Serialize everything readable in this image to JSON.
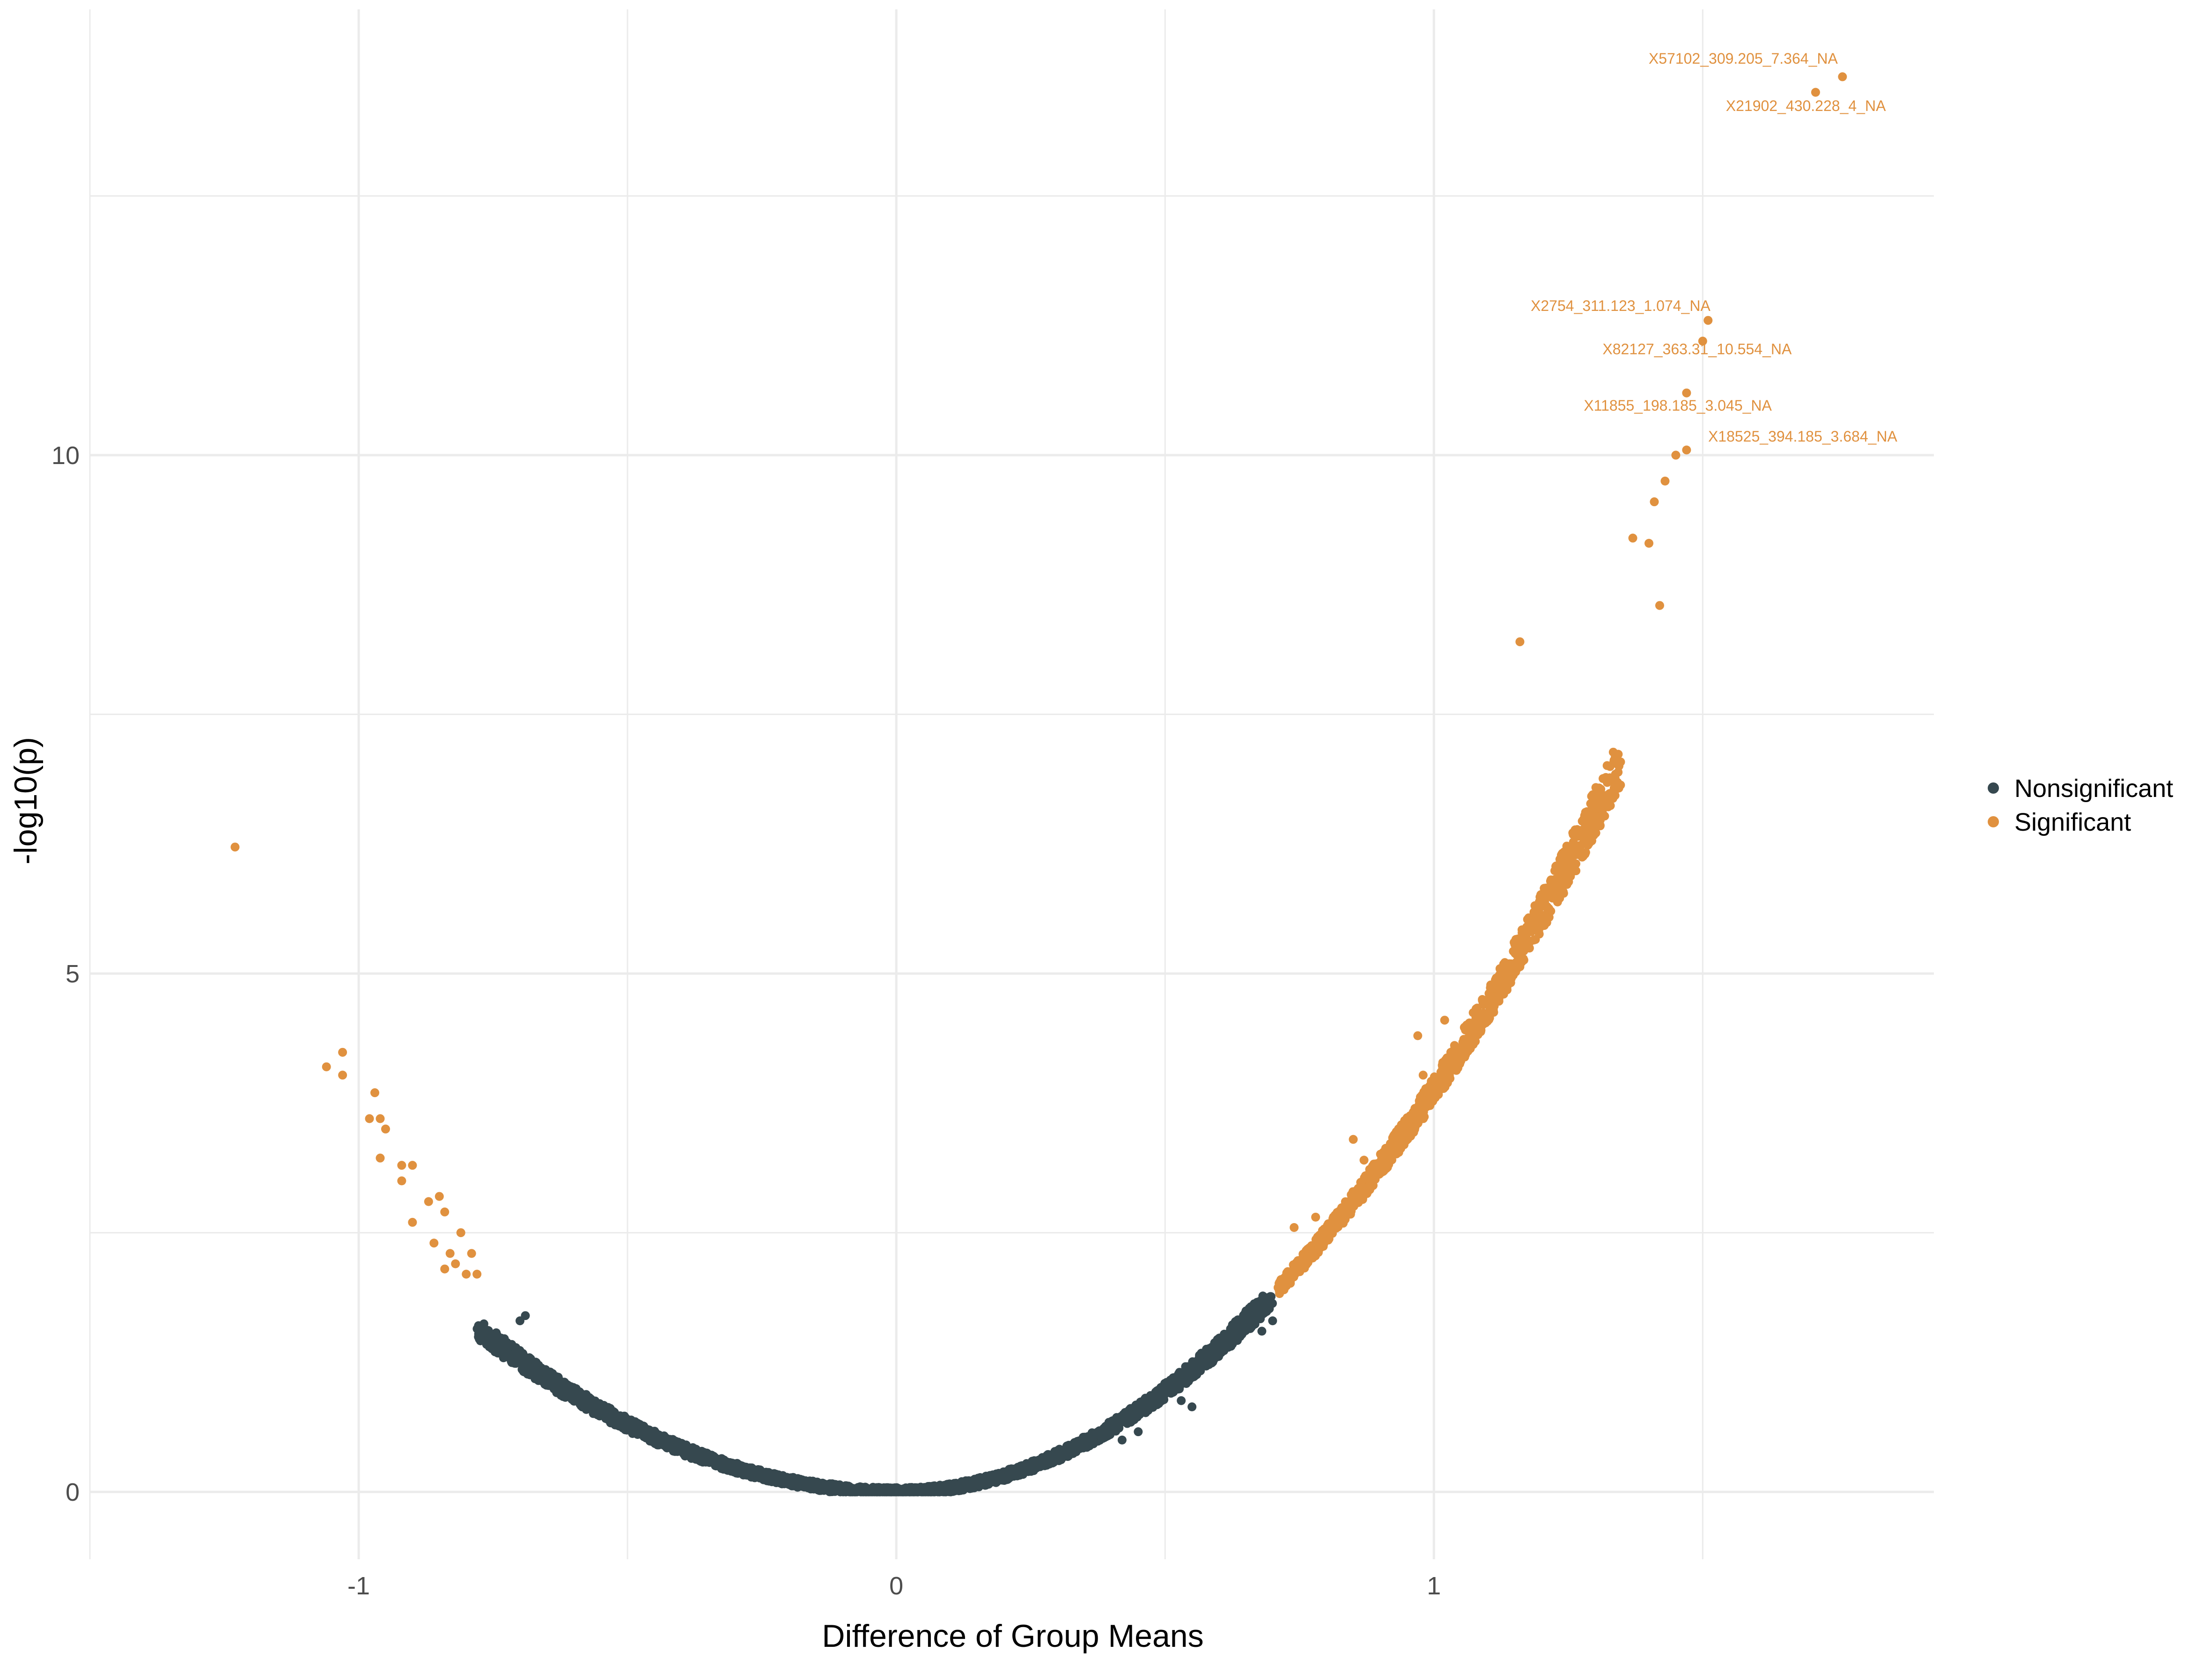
{
  "chart_data": {
    "type": "scatter",
    "title": "",
    "xlabel": "Difference of Group Means",
    "ylabel": "-log10(p)",
    "xlim": [
      -1.5,
      1.93
    ],
    "ylim": [
      -0.65,
      14.3
    ],
    "x_ticks": [
      -1,
      0,
      1
    ],
    "x_tick_labels": [
      "-1",
      "0",
      "1"
    ],
    "y_ticks": [
      0,
      5,
      10
    ],
    "y_tick_labels": [
      "0",
      "5",
      "10"
    ],
    "grid": true,
    "legend_position": "right",
    "colors": {
      "Nonsignificant": "#36484f",
      "Significant": "#e0913f",
      "grid": "#ebebeb"
    },
    "curve_model": {
      "note_shape": "points follow -log10(p) ≈ k·x² with scatter; exact values approximated",
      "k_positive": 3.88,
      "k_negative": 2.6,
      "significance_threshold": 1.9
    },
    "series": [
      {
        "name": "Nonsignificant",
        "color": "#36484f",
        "points_extra": [
          [
            0.42,
            0.5
          ],
          [
            0.45,
            0.58
          ],
          [
            0.53,
            0.88
          ],
          [
            0.55,
            0.82
          ],
          [
            -0.52,
            0.73
          ],
          [
            0.7,
            1.65
          ],
          [
            0.68,
            1.55
          ],
          [
            -0.69,
            1.7
          ],
          [
            -0.7,
            1.65
          ]
        ]
      },
      {
        "name": "Significant",
        "color": "#e0913f",
        "points": [
          [
            -1.23,
            6.22
          ],
          [
            -1.06,
            4.1
          ],
          [
            -1.03,
            4.24
          ],
          [
            -1.03,
            4.02
          ],
          [
            -0.97,
            3.85
          ],
          [
            -0.98,
            3.6
          ],
          [
            -0.96,
            3.6
          ],
          [
            -0.95,
            3.5
          ],
          [
            -0.96,
            3.22
          ],
          [
            -0.92,
            3.15
          ],
          [
            -0.9,
            3.15
          ],
          [
            -0.92,
            3.0
          ],
          [
            -0.87,
            2.8
          ],
          [
            -0.9,
            2.6
          ],
          [
            -0.84,
            2.7
          ],
          [
            -0.85,
            2.85
          ],
          [
            -0.83,
            2.3
          ],
          [
            -0.81,
            2.5
          ],
          [
            -0.86,
            2.4
          ],
          [
            -0.79,
            2.3
          ],
          [
            -0.82,
            2.2
          ],
          [
            -0.8,
            2.1
          ],
          [
            -0.78,
            2.1
          ],
          [
            -0.84,
            2.15
          ],
          [
            0.74,
            2.55
          ],
          [
            0.78,
            2.65
          ],
          [
            0.85,
            3.4
          ],
          [
            0.87,
            3.2
          ],
          [
            0.98,
            4.02
          ],
          [
            0.97,
            4.4
          ],
          [
            1.02,
            4.55
          ],
          [
            1.16,
            8.2
          ],
          [
            1.37,
            9.2
          ],
          [
            1.4,
            9.15
          ],
          [
            1.41,
            9.55
          ],
          [
            1.43,
            9.75
          ],
          [
            1.42,
            8.55
          ],
          [
            1.45,
            10.0
          ],
          [
            1.47,
            10.05
          ],
          [
            1.47,
            10.6
          ],
          [
            1.5,
            11.1
          ],
          [
            1.51,
            11.3
          ],
          [
            1.71,
            13.5
          ],
          [
            1.76,
            13.65
          ]
        ]
      }
    ],
    "annotations": [
      {
        "text": "X57102_309.205_7.364_NA",
        "x": 1.76,
        "y": 13.65
      },
      {
        "text": "X21902_430.228_4_NA",
        "x": 1.71,
        "y": 13.5
      },
      {
        "text": "X2754_311.123_1.074_NA",
        "x": 1.51,
        "y": 11.3
      },
      {
        "text": "X82127_363.31_10.554_NA",
        "x": 1.5,
        "y": 11.1
      },
      {
        "text": "X11855_198.185_3.045_NA",
        "x": 1.47,
        "y": 10.6
      },
      {
        "text": "X18525_394.185_3.684_NA",
        "x": 1.47,
        "y": 10.05
      }
    ]
  }
}
